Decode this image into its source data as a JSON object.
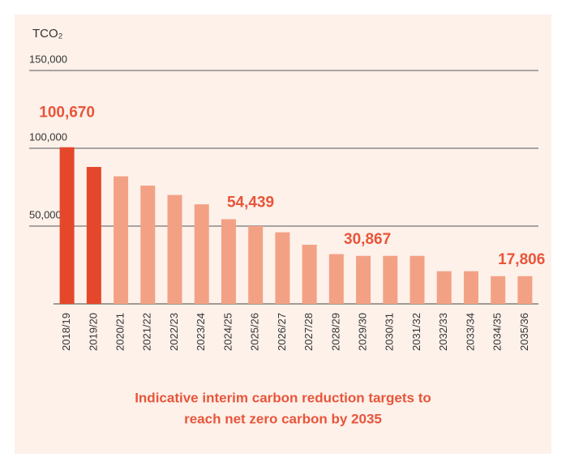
{
  "chart_data": {
    "type": "bar",
    "title": [
      "Indicative interim carbon reduction targets to",
      "reach net zero carbon by 2035"
    ],
    "y_label": "TCO₂",
    "categories": [
      "2018/19",
      "2019/20",
      "2020/21",
      "2021/22",
      "2022/23",
      "2023/24",
      "2024/25",
      "2025/26",
      "2026/27",
      "2027/28",
      "2028/29",
      "2029/30",
      "2030/31",
      "2031/32",
      "2032/33",
      "2033/34",
      "2034/35",
      "2035/36"
    ],
    "values": [
      100670,
      88000,
      82000,
      76000,
      70000,
      64000,
      54439,
      50000,
      46000,
      38000,
      32000,
      30867,
      30867,
      30867,
      21000,
      21000,
      17806,
      17806
    ],
    "value_labels": [
      "100,670",
      null,
      null,
      null,
      null,
      null,
      "54,439",
      null,
      null,
      null,
      null,
      "30,867",
      null,
      null,
      null,
      null,
      "17,806",
      null
    ],
    "colors": [
      "#e5472b",
      "#e5472b",
      "#f3a184",
      "#f3a184",
      "#f3a184",
      "#f3a184",
      "#f3a184",
      "#f3a184",
      "#f3a184",
      "#f3a184",
      "#f3a184",
      "#f3a184",
      "#f3a184",
      "#f3a184",
      "#f3a184",
      "#f3a184",
      "#f3a184",
      "#f3a184"
    ],
    "ylim": [
      0,
      150000
    ],
    "yticks": [
      {
        "value": 50000,
        "label": "50,000"
      },
      {
        "value": 100000,
        "label": "100,000"
      },
      {
        "value": 150000,
        "label": "150,000"
      }
    ],
    "grid": true
  }
}
